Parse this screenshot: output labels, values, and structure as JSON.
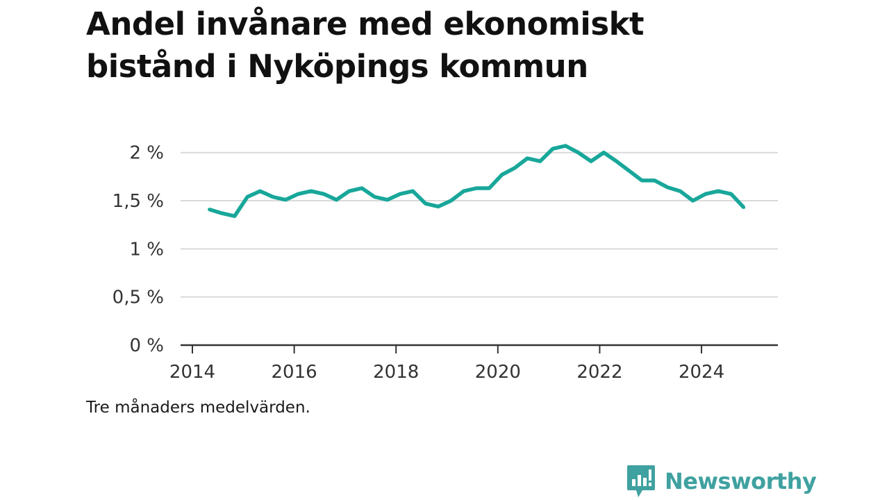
{
  "title": "Andel invånare med ekonomiskt bistånd i Nyköpings kommun",
  "note": "Tre månaders medelvärden.",
  "brand": {
    "name": "Newsworthy",
    "icon": "bar-chart-speech-bubble-icon",
    "color": "#3fa1a0"
  },
  "chart_data": {
    "type": "line",
    "title": "Andel invånare med ekonomiskt bistånd i Nyköpings kommun",
    "xlabel": "",
    "ylabel": "",
    "x_ticks": [
      "2014",
      "2016",
      "2018",
      "2020",
      "2022",
      "2024"
    ],
    "y_ticks": [
      "0 %",
      "0,5 %",
      "1 %",
      "1,5 %",
      "2 %"
    ],
    "xlim": [
      2014,
      2025.5
    ],
    "ylim": [
      0,
      2.2
    ],
    "grid": true,
    "line_color": "#18a79a",
    "series": [
      {
        "x": [
          2014.33,
          2014.58,
          2014.83,
          2015.08,
          2015.33,
          2015.58,
          2015.83,
          2016.08,
          2016.33,
          2016.58,
          2016.83,
          2017.08,
          2017.33,
          2017.58,
          2017.83,
          2018.08,
          2018.33,
          2018.58,
          2018.83,
          2019.08,
          2019.33,
          2019.58,
          2019.83,
          2020.08,
          2020.33,
          2020.58,
          2020.83,
          2021.08,
          2021.33,
          2021.58,
          2021.83,
          2022.08,
          2022.33,
          2022.58,
          2022.83,
          2023.08,
          2023.33,
          2023.58,
          2023.83,
          2024.08,
          2024.33,
          2024.58,
          2024.83
        ],
        "values": [
          1.41,
          1.37,
          1.34,
          1.54,
          1.6,
          1.54,
          1.51,
          1.57,
          1.6,
          1.57,
          1.51,
          1.6,
          1.63,
          1.54,
          1.51,
          1.57,
          1.6,
          1.47,
          1.44,
          1.5,
          1.6,
          1.63,
          1.63,
          1.77,
          1.84,
          1.94,
          1.91,
          2.04,
          2.07,
          2.0,
          1.91,
          2.0,
          1.91,
          1.81,
          1.71,
          1.71,
          1.64,
          1.6,
          1.5,
          1.57,
          1.6,
          1.57,
          1.43
        ]
      }
    ]
  }
}
